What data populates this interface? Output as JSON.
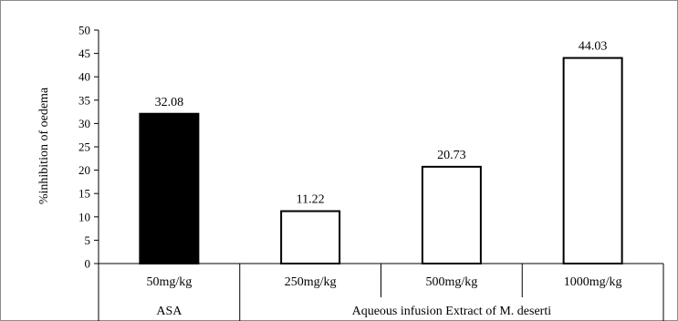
{
  "chart_data": {
    "type": "bar",
    "title": "",
    "xlabel": "",
    "ylabel": "%inhibition of oedema",
    "ylim": [
      0,
      50
    ],
    "ytick_step": 5,
    "grid": false,
    "legend": "none",
    "categories": [
      "50mg/kg",
      "250mg/kg",
      "500mg/kg",
      "1000mg/kg"
    ],
    "values": [
      32.08,
      11.22,
      20.73,
      44.03
    ],
    "data_labels": [
      "32.08",
      "11.22",
      "20.73",
      "44.03"
    ],
    "bar_fill_colors": [
      "#000000",
      "#ffffff",
      "#ffffff",
      "#ffffff"
    ],
    "bar_stroke_color": "#000000",
    "groups": [
      {
        "label": "ASA",
        "categories": [
          "50mg/kg"
        ]
      },
      {
        "label": "Aqueous infusion Extract of M. deserti",
        "categories": [
          "250mg/kg",
          "500mg/kg",
          "1000mg/kg"
        ]
      }
    ]
  }
}
